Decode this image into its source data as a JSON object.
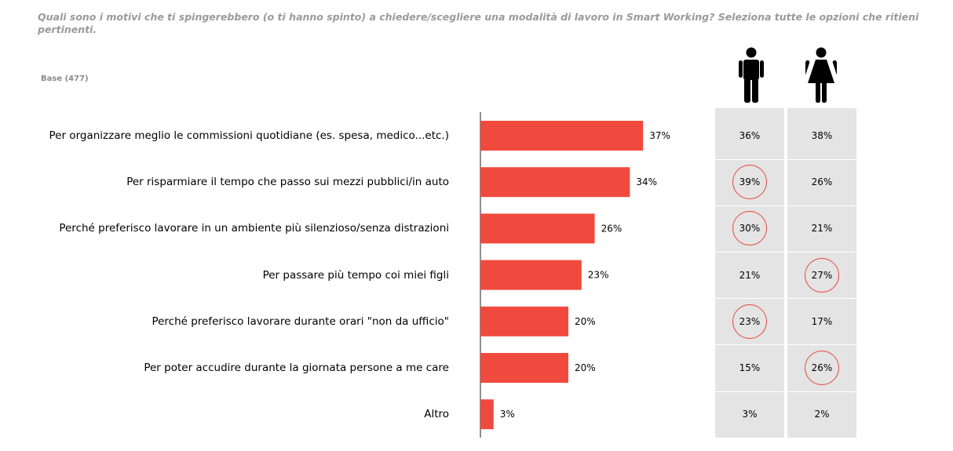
{
  "question": "Quali sono i motivi che ti spingerebbero (o ti hanno spinto) a chiedere/scegliere una modalità di lavoro in Smart Working? Seleziona tutte le opzioni che ritieni pertinenti.",
  "base_label": "Base (477)",
  "icons": {
    "male": "male-person-icon",
    "female": "female-person-icon"
  },
  "colors": {
    "bar": "#f04a3f",
    "highlight_circle": "#e8463c",
    "panel_bg": "#e4e4e4"
  },
  "chart_data": {
    "type": "bar",
    "orientation": "horizontal",
    "categories": [
      "Per organizzare meglio le commissioni quotidiane (es. spesa, medico...etc.)",
      "Per risparmiare il tempo che passo sui mezzi pubblici/in auto",
      "Perché preferisco lavorare in un ambiente più silenzioso/senza distrazioni",
      "Per passare più tempo coi miei figli",
      "Perché preferisco lavorare durante orari \"non da ufficio\"",
      "Per poter accudire durante la giornata persone a me care",
      "Altro"
    ],
    "values": [
      37,
      34,
      26,
      23,
      20,
      20,
      3
    ],
    "value_labels": [
      "37%",
      "34%",
      "26%",
      "23%",
      "20%",
      "20%",
      "3%"
    ],
    "xlim": [
      0,
      100
    ],
    "breakdown": {
      "male": {
        "icon": "male-person-icon",
        "labels": [
          "36%",
          "39%",
          "30%",
          "21%",
          "23%",
          "15%",
          "3%"
        ],
        "circled": [
          false,
          true,
          true,
          false,
          true,
          false,
          false
        ]
      },
      "female": {
        "icon": "female-person-icon",
        "labels": [
          "38%",
          "26%",
          "21%",
          "27%",
          "17%",
          "26%",
          "2%"
        ],
        "circled": [
          false,
          false,
          false,
          true,
          false,
          true,
          false
        ]
      }
    }
  }
}
